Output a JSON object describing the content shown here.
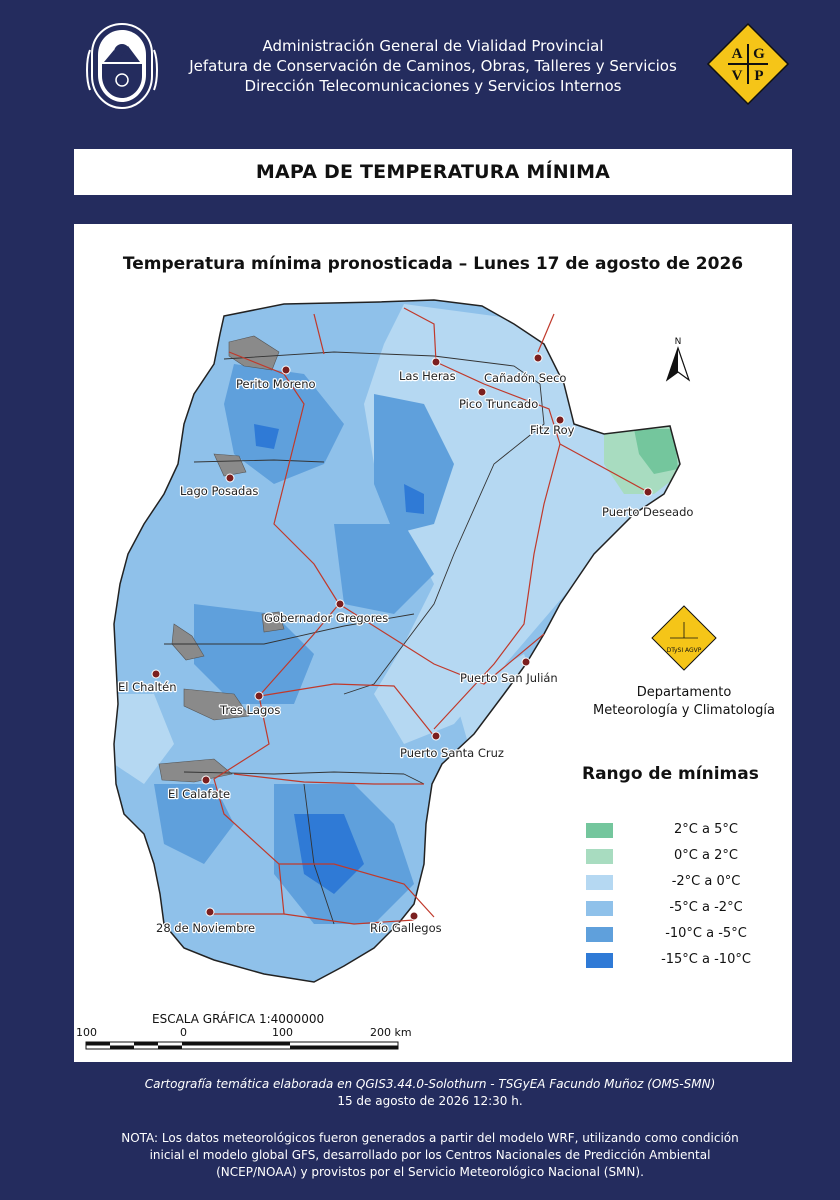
{
  "header": {
    "line1": "Administración General de Vialidad Provincial",
    "line2": "Jefatura de Conservación de Caminos, Obras, Talleres y Servicios",
    "line3": "Dirección Telecomunicaciones y Servicios Internos",
    "logo_letters": [
      "A",
      "G",
      "V",
      "P"
    ]
  },
  "title": "MAPA DE TEMPERATURA MÍNIMA",
  "map": {
    "title": "Temperatura mínima pronosticada – Lunes 17 de agosto de 2026",
    "north_label": "N",
    "cities": [
      {
        "name": "Perito Moreno"
      },
      {
        "name": "Las Heras"
      },
      {
        "name": "Cañadón Seco"
      },
      {
        "name": "Pico Truncado"
      },
      {
        "name": "Fitz Roy"
      },
      {
        "name": "Lago Posadas"
      },
      {
        "name": "Puerto Deseado"
      },
      {
        "name": "Gobernador Gregores"
      },
      {
        "name": "El Chaltén"
      },
      {
        "name": "Puerto San Julián"
      },
      {
        "name": "Tres Lagos"
      },
      {
        "name": "Puerto Santa Cruz"
      },
      {
        "name": "El Calafate"
      },
      {
        "name": "28 de Noviembre"
      },
      {
        "name": "Río Gallegos"
      }
    ],
    "department_logo_text": "DTySI AGVP",
    "department": [
      "Departamento",
      "Meteorología y Climatología"
    ],
    "legend": {
      "title": "Rango de mínimas",
      "items": [
        {
          "label": "2°C a 5°C",
          "color": "#74c69d"
        },
        {
          "label": "0°C a 2°C",
          "color": "#a8dcc0"
        },
        {
          "label": "-2°C a 0°C",
          "color": "#b5d8f2"
        },
        {
          "label": "-5°C a -2°C",
          "color": "#8fc1ea"
        },
        {
          "label": "-10°C a -5°C",
          "color": "#5fa0dc"
        },
        {
          "label": "-15°C a -10°C",
          "color": "#2f7ad6"
        }
      ]
    },
    "scale": {
      "title": "ESCALA GRÁFICA 1:4000000",
      "labels": [
        "100",
        "0",
        "100",
        "200 km"
      ]
    }
  },
  "footer": {
    "credit": "Cartografía temática elaborada en QGIS3.44.0-Solothurn - TSGyEA Facundo Muñoz (OMS-SMN)",
    "date": "15 de agosto de 2026 12:30 h.",
    "note1": "NOTA: Los datos meteorológicos fueron generados a partir del modelo WRF, utilizando como condición",
    "note2": "inicial el modelo global GFS, desarrollado por los Centros Nacionales de Predicción Ambiental",
    "note3": "(NCEP/NOAA) y provistos por el Servicio Meteorológico Nacional (SMN)."
  }
}
